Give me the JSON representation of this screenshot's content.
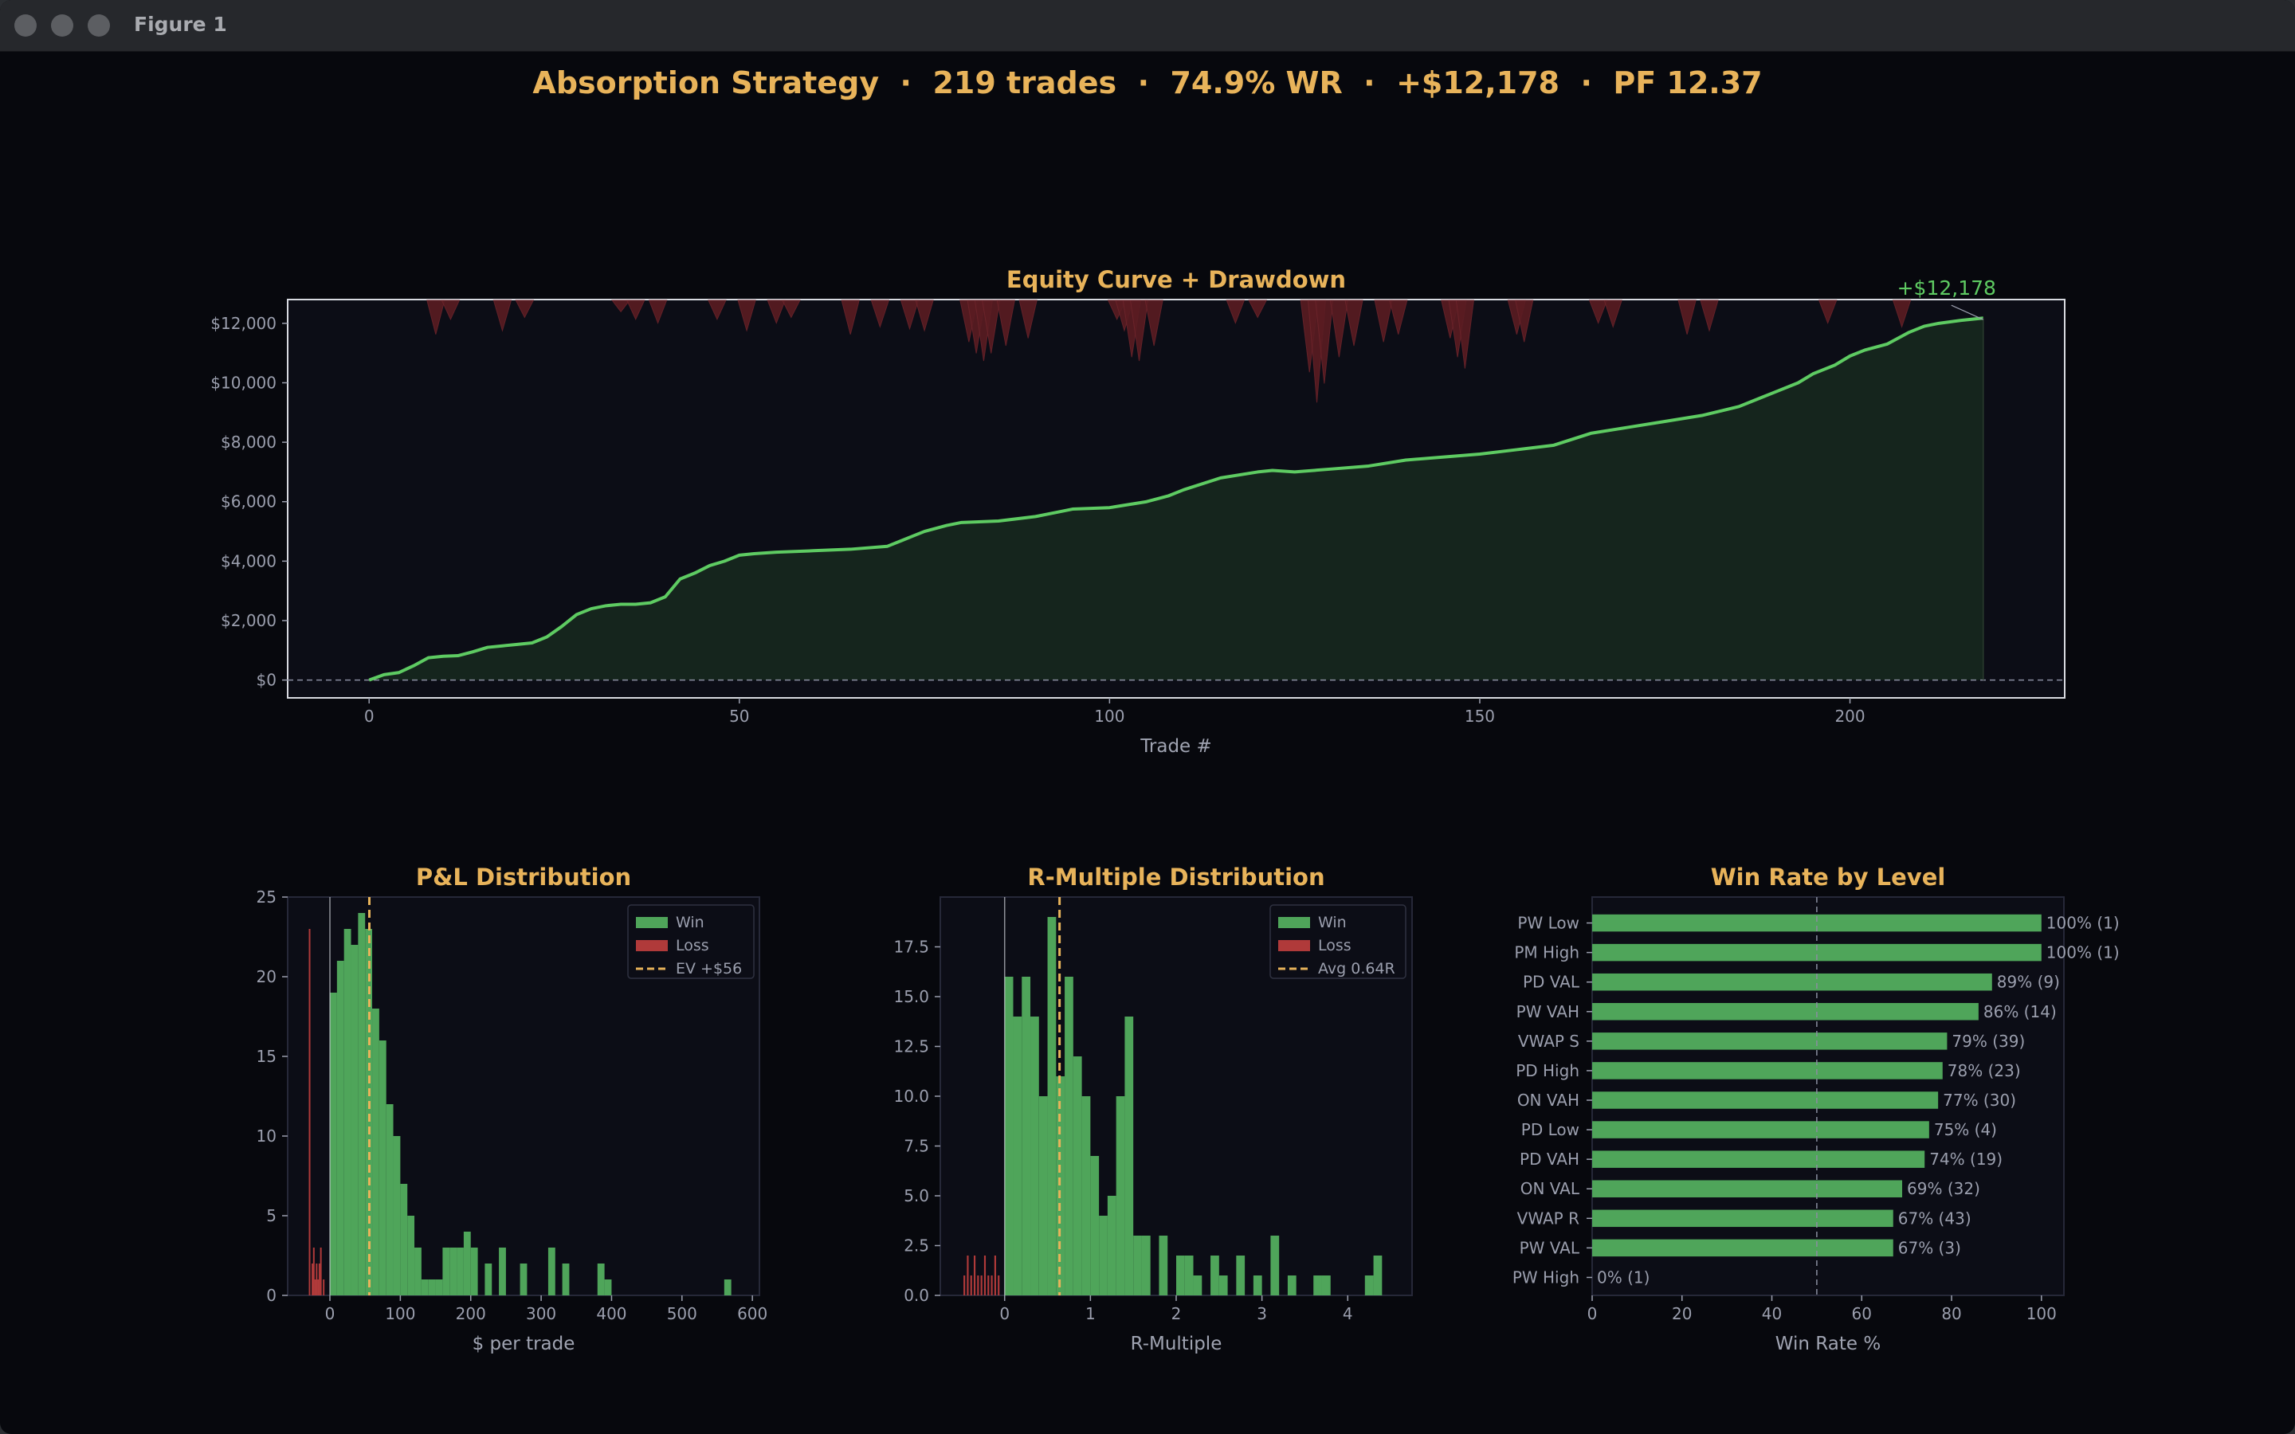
{
  "window": {
    "title": "Figure 1"
  },
  "suptitle": "Absorption Strategy  ·  219 trades  ·  74.9% WR  ·  +$12,178  ·  PF 12.37",
  "colors": {
    "background": "#07080d",
    "panel": "#0c0d16",
    "accent": "#e8b35a",
    "win": "#4fa55a",
    "loss": "#b03a3a",
    "equity_line": "#5ecb62",
    "drawdown": "#5a1c22"
  },
  "chart_data": [
    {
      "type": "area",
      "title": "Equity Curve  +  Drawdown",
      "xlabel": "Trade #",
      "ylabel": "",
      "xlim": [
        -11,
        229
      ],
      "ylim": [
        -600,
        12800
      ],
      "xticks": [
        0,
        50,
        100,
        150,
        200
      ],
      "yticks": [
        0,
        2000,
        4000,
        6000,
        8000,
        10000,
        12000
      ],
      "ytick_labels": [
        "$0",
        "$2,000",
        "$4,000",
        "$6,000",
        "$8,000",
        "$10,000",
        "$12,000"
      ],
      "annotation": "+$12,178",
      "final_value": 12178,
      "zero_line": 0,
      "series": [
        {
          "type": "line",
          "x": [
            0,
            2,
            4,
            6,
            8,
            10,
            12,
            14,
            16,
            18,
            20,
            22,
            24,
            26,
            28,
            30,
            32,
            34,
            36,
            38,
            40,
            42,
            44,
            46,
            48,
            50,
            52,
            55,
            60,
            65,
            70,
            72,
            75,
            78,
            80,
            85,
            90,
            93,
            95,
            100,
            105,
            108,
            110,
            115,
            120,
            122,
            125,
            130,
            135,
            140,
            145,
            150,
            155,
            160,
            165,
            170,
            175,
            180,
            185,
            188,
            190,
            193,
            195,
            198,
            200,
            202,
            205,
            208,
            210,
            212,
            215,
            218
          ],
          "y": [
            0,
            180,
            250,
            480,
            750,
            800,
            820,
            950,
            1100,
            1150,
            1200,
            1250,
            1450,
            1800,
            2200,
            2400,
            2500,
            2550,
            2550,
            2600,
            2800,
            3400,
            3600,
            3850,
            4000,
            4200,
            4250,
            4300,
            4350,
            4400,
            4500,
            4700,
            5000,
            5200,
            5300,
            5350,
            5500,
            5650,
            5750,
            5800,
            6000,
            6200,
            6400,
            6800,
            7000,
            7050,
            7000,
            7100,
            7200,
            7400,
            7500,
            7600,
            7750,
            7900,
            8300,
            8500,
            8700,
            8900,
            9200,
            9500,
            9700,
            10000,
            10300,
            10600,
            10900,
            11100,
            11300,
            11700,
            11900,
            12000,
            12100,
            12178
          ]
        },
        {
          "name": "Drawdown",
          "type": "drawdown",
          "x": [
            9,
            11,
            18,
            21,
            34,
            36,
            39,
            47,
            51,
            55,
            57,
            65,
            69,
            73,
            75,
            81,
            82,
            83,
            84,
            86,
            89,
            101,
            102,
            103,
            104,
            106,
            117,
            120,
            127,
            128,
            129,
            131,
            133,
            137,
            139,
            146,
            147,
            148,
            155,
            156,
            166,
            168,
            178,
            181,
            197,
            207
          ],
          "y": [
            900,
            500,
            800,
            450,
            300,
            500,
            600,
            500,
            800,
            600,
            450,
            900,
            700,
            750,
            800,
            1100,
            1400,
            1600,
            1400,
            1200,
            1000,
            500,
            800,
            1500,
            1600,
            1200,
            600,
            450,
            1900,
            2700,
            2200,
            1500,
            1200,
            1100,
            900,
            1000,
            1500,
            1800,
            900,
            1100,
            600,
            700,
            900,
            800,
            600,
            700
          ]
        }
      ]
    },
    {
      "type": "bar",
      "title": "P&L Distribution",
      "xlabel": "$ per trade",
      "ylabel": "",
      "xlim": [
        -60,
        610
      ],
      "ylim": [
        0,
        25
      ],
      "xticks": [
        0,
        100,
        200,
        300,
        400,
        500,
        600
      ],
      "yticks": [
        0,
        5,
        10,
        15,
        20,
        25
      ],
      "ev_line": 56,
      "zero_line": 0,
      "series": [
        {
          "name": "Win",
          "bin_width": 10,
          "x": [
            0,
            10,
            20,
            30,
            40,
            50,
            60,
            70,
            80,
            90,
            100,
            110,
            120,
            130,
            140,
            150,
            160,
            170,
            180,
            190,
            200,
            220,
            240,
            270,
            310,
            330,
            380,
            390,
            560
          ],
          "values": [
            19,
            21,
            23,
            22,
            24,
            23,
            18,
            16,
            12,
            10,
            7,
            5,
            3,
            1,
            1,
            1,
            3,
            3,
            3,
            4,
            3,
            2,
            3,
            2,
            3,
            2,
            2,
            1,
            1
          ]
        },
        {
          "name": "Loss",
          "bin_width": 1.5,
          "x": [
            -30,
            -26,
            -24,
            -22,
            -20,
            -18,
            -16,
            -14,
            -10
          ],
          "values": [
            23,
            2,
            3,
            1,
            2,
            1,
            2,
            3,
            1
          ]
        }
      ],
      "legend": [
        "Win",
        "Loss",
        "EV +$56"
      ]
    },
    {
      "type": "bar",
      "title": "R-Multiple Distribution",
      "xlabel": "R-Multiple",
      "ylabel": "",
      "xlim": [
        -0.75,
        4.75
      ],
      "ylim": [
        0,
        20
      ],
      "xticks": [
        0,
        1,
        2,
        3,
        4
      ],
      "yticks": [
        0,
        2.5,
        5,
        7.5,
        10,
        12.5,
        15,
        17.5
      ],
      "ytick_labels": [
        "0.0",
        "2.5",
        "5.0",
        "7.5",
        "10.0",
        "12.5",
        "15.0",
        "17.5"
      ],
      "avg_line": 0.64,
      "zero_line": 0,
      "series": [
        {
          "name": "Win",
          "bin_width": 0.1,
          "x": [
            0,
            0.1,
            0.2,
            0.3,
            0.4,
            0.5,
            0.6,
            0.7,
            0.8,
            0.9,
            1.0,
            1.1,
            1.2,
            1.3,
            1.4,
            1.5,
            1.6,
            1.8,
            2.0,
            2.1,
            2.2,
            2.4,
            2.5,
            2.7,
            2.9,
            3.1,
            3.3,
            3.6,
            3.7,
            4.2,
            4.3
          ],
          "values": [
            16,
            14,
            16,
            14,
            10,
            19,
            11,
            16,
            12,
            10,
            7,
            4,
            5,
            10,
            14,
            3,
            3,
            3,
            2,
            2,
            1,
            2,
            1,
            2,
            1,
            3,
            1,
            1,
            1,
            1,
            2
          ]
        },
        {
          "name": "Loss",
          "bin_width": 0.02,
          "x": [
            -0.48,
            -0.44,
            -0.4,
            -0.36,
            -0.32,
            -0.28,
            -0.24,
            -0.2,
            -0.16,
            -0.12,
            -0.08
          ],
          "values": [
            1,
            2,
            1,
            2,
            1,
            1,
            2,
            1,
            1,
            2,
            1
          ]
        }
      ],
      "legend": [
        "Win",
        "Loss",
        "Avg 0.64R"
      ]
    },
    {
      "type": "bar",
      "orientation": "horizontal",
      "title": "Win Rate by Level",
      "xlabel": "Win Rate %",
      "ylabel": "",
      "xlim": [
        0,
        105
      ],
      "xticks": [
        0,
        20,
        40,
        60,
        80,
        100
      ],
      "reference_line": 50,
      "categories": [
        "PW Low",
        "PM High",
        "PD VAL",
        "PW VAH",
        "VWAP S",
        "PD High",
        "ON VAH",
        "PD Low",
        "PD VAH",
        "ON VAL",
        "VWAP R",
        "PW VAL",
        "PW High"
      ],
      "values": [
        100,
        100,
        89,
        86,
        79,
        78,
        77,
        75,
        74,
        69,
        67,
        67,
        0
      ],
      "labels": [
        "100% (1)",
        "100% (1)",
        "89% (9)",
        "86% (14)",
        "79% (39)",
        "78% (23)",
        "77% (30)",
        "75% (4)",
        "74% (19)",
        "69% (32)",
        "67% (43)",
        "67% (3)",
        "0% (1)"
      ]
    }
  ]
}
